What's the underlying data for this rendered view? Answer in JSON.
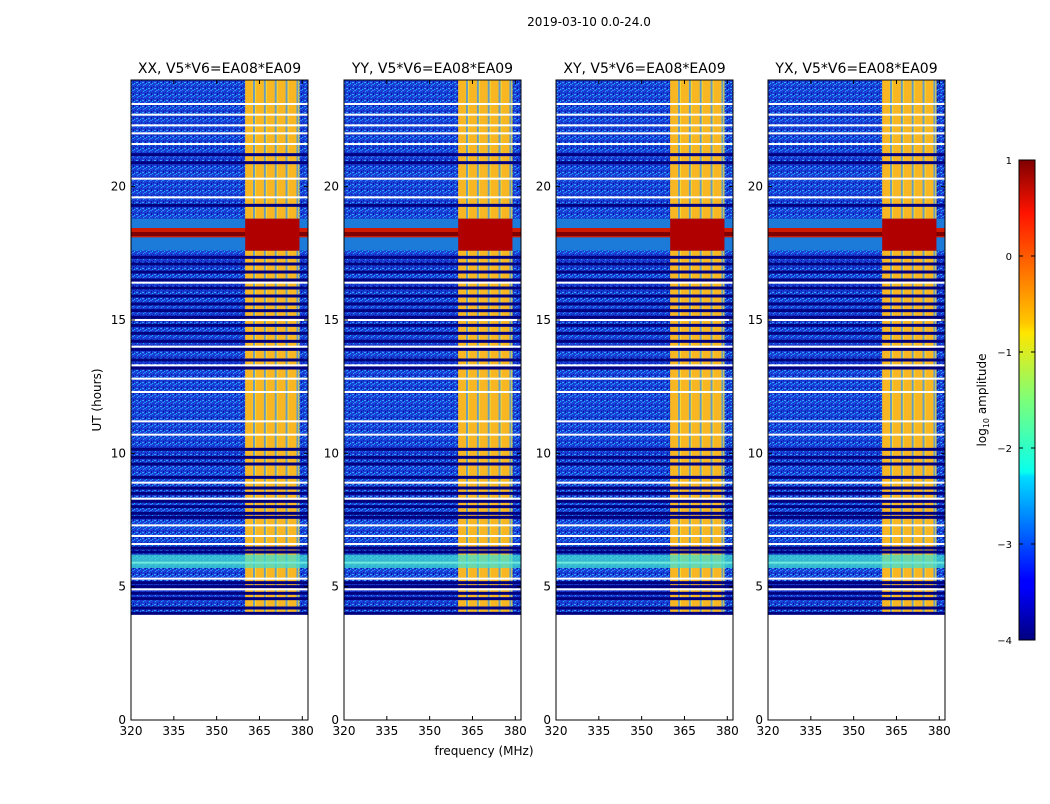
{
  "chart_data": {
    "type": "heatmap",
    "title": "2019-03-10 0.0-24.0",
    "xlabel": "frequency (MHz)",
    "ylabel": "UT (hours)",
    "xlim": [
      320,
      382
    ],
    "ylim": [
      0,
      24
    ],
    "x_ticks": [
      320,
      335,
      350,
      365,
      380
    ],
    "y_ticks": [
      0,
      5,
      10,
      15,
      20
    ],
    "panels": [
      {
        "name": "XX",
        "title": "XX, V5*V6=EA08*EA09",
        "band_freq": [
          360,
          379
        ]
      },
      {
        "name": "YY",
        "title": "YY, V5*V6=EA08*EA09",
        "band_freq": [
          360,
          379
        ]
      },
      {
        "name": "XY",
        "title": "XY, V5*V6=EA08*EA09",
        "band_freq": [
          360,
          379
        ]
      },
      {
        "name": "YX",
        "title": "YX, V5*V6=EA08*EA09",
        "band_freq": [
          360,
          379
        ]
      }
    ],
    "data_start_hour": 4.0,
    "bright_band_hours": [
      17.6,
      18.8
    ],
    "colorbar": {
      "label_main": "log",
      "label_sub": "10",
      "label_tail": " amplitude",
      "min": -4,
      "max": 1,
      "ticks": [
        1,
        0,
        -1,
        -2,
        -3,
        -4
      ],
      "tick_labels": [
        "1",
        "0",
        "−1",
        "−2",
        "−3",
        "−4"
      ],
      "colormap": "jet"
    }
  }
}
